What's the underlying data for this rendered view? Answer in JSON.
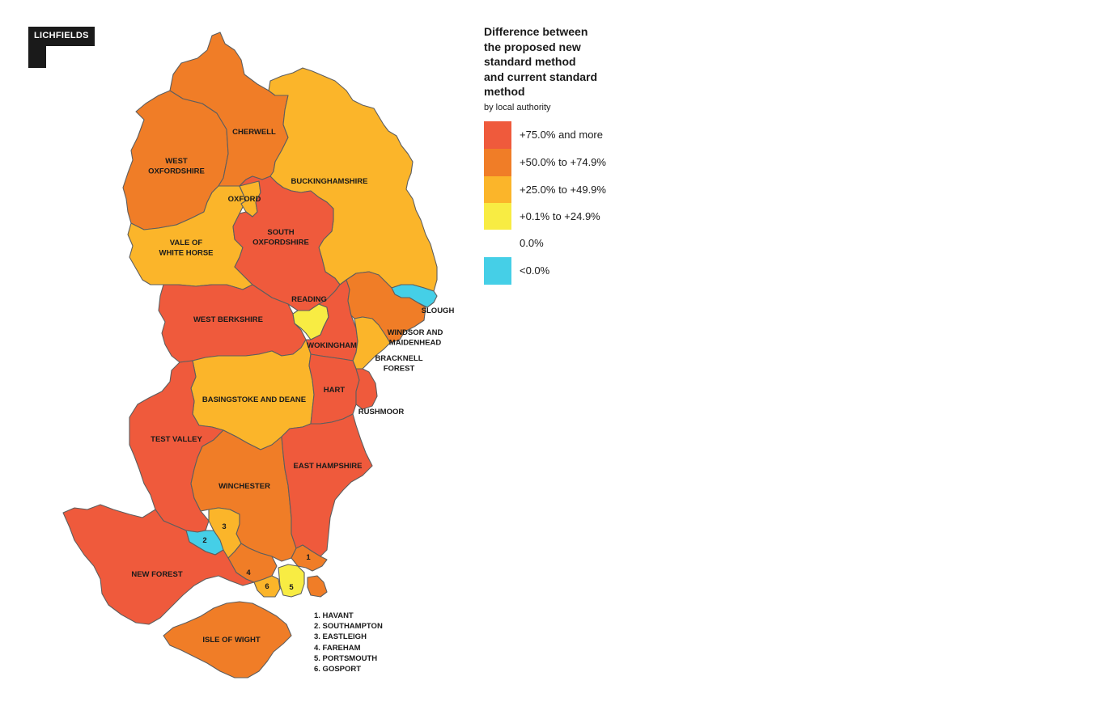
{
  "logo": {
    "text": "LICHFIELDS"
  },
  "legend": {
    "title": "Difference between\nthe proposed new\nstandard method\nand current standard\nmethod",
    "subtitle": "by local authority",
    "items": [
      {
        "label": "+75.0% and more",
        "color": "#ef5a3c"
      },
      {
        "label": "+50.0% to +74.9%",
        "color": "#f07d27"
      },
      {
        "label": "+25.0% to +49.9%",
        "color": "#fbb52a"
      },
      {
        "label": "+0.1% to +24.9%",
        "color": "#f8ec43"
      },
      {
        "label": "0.0%",
        "color": "#ffffff"
      },
      {
        "label": "<0.0%",
        "color": "#45cfe7"
      }
    ]
  },
  "regions": {
    "cherwell": {
      "label": "CHERWELL",
      "band": "+50.0% to +74.9%"
    },
    "west_oxfordshire": {
      "label": "WEST\nOXFORDSHIRE",
      "band": "+50.0% to +74.9%"
    },
    "oxford": {
      "label": "OXFORD",
      "band": "+25.0% to +49.9%"
    },
    "buckinghamshire": {
      "label": "BUCKINGHAMSHIRE",
      "band": "+25.0% to +49.9%"
    },
    "vale_of_white_horse": {
      "label": "VALE OF\nWHITE HORSE",
      "band": "+25.0% to +49.9%"
    },
    "south_oxfordshire": {
      "label": "SOUTH\nOXFORDSHIRE",
      "band": "+75.0% and more"
    },
    "reading": {
      "label": "READING",
      "band": "+0.1% to +24.9%"
    },
    "slough": {
      "label": "SLOUGH",
      "band": "<0.0%"
    },
    "west_berkshire": {
      "label": "WEST BERKSHIRE",
      "band": "+75.0% and more"
    },
    "wokingham": {
      "label": "WOKINGHAM",
      "band": "+75.0% and more"
    },
    "windsor_and_maidenhead": {
      "label": "WINDSOR AND\nMAIDENHEAD",
      "band": "+50.0% to +74.9%"
    },
    "bracknell_forest": {
      "label": "BRACKNELL\nFOREST",
      "band": "+25.0% to +49.9%"
    },
    "basingstoke_and_deane": {
      "label": "BASINGSTOKE AND DEANE",
      "band": "+25.0% to +49.9%"
    },
    "hart": {
      "label": "HART",
      "band": "+75.0% and more"
    },
    "rushmoor": {
      "label": "RUSHMOOR",
      "band": "+75.0% and more"
    },
    "test_valley": {
      "label": "TEST VALLEY",
      "band": "+75.0% and more"
    },
    "winchester": {
      "label": "WINCHESTER",
      "band": "+50.0% to +74.9%"
    },
    "east_hampshire": {
      "label": "EAST HAMPSHIRE",
      "band": "+75.0% and more"
    },
    "new_forest": {
      "label": "NEW FOREST",
      "band": "+75.0% and more"
    },
    "isle_of_wight": {
      "label": "ISLE OF WIGHT",
      "band": "+50.0% to +74.9%"
    },
    "havant": {
      "label": "1",
      "band": "+50.0% to +74.9%"
    },
    "southampton": {
      "label": "2",
      "band": "<0.0%"
    },
    "eastleigh": {
      "label": "3",
      "band": "+25.0% to +49.9%"
    },
    "fareham": {
      "label": "4",
      "band": "+50.0% to +74.9%"
    },
    "portsmouth": {
      "label": "5",
      "band": "+0.1% to +24.9%"
    },
    "gosport": {
      "label": "6",
      "band": "+25.0% to +49.9%"
    }
  },
  "key": [
    "1. HAVANT",
    "2. SOUTHAMPTON",
    "3. EASTLEIGH",
    "4. FAREHAM",
    "5. PORTSMOUTH",
    "6. GOSPORT"
  ]
}
